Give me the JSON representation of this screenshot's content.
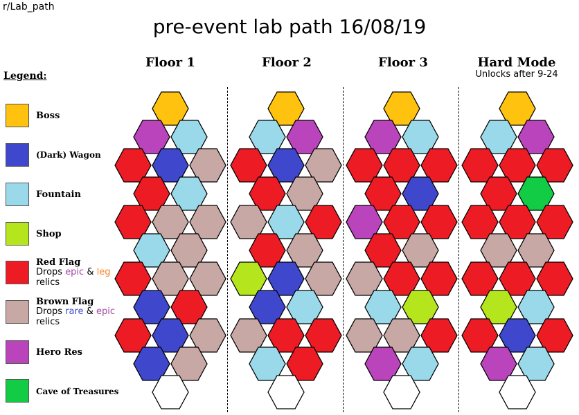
{
  "subreddit": "r/Lab_path",
  "title": "pre-event lab path  16/08/19",
  "legend": {
    "title": "Legend:",
    "items": [
      {
        "key": "boss",
        "label": "Boss",
        "color": "#FFC20E"
      },
      {
        "key": "wagon",
        "label": "(Dark) Wagon",
        "color": "#3F48CC"
      },
      {
        "key": "fountain",
        "label": "Fountain",
        "color": "#99D9EA"
      },
      {
        "key": "shop",
        "label": "Shop",
        "color": "#B5E61D"
      },
      {
        "key": "red",
        "label": "Red Flag",
        "color": "#ED1C24",
        "desc": {
          "line1_prefix": "Drops ",
          "word1": "epic",
          "mid": " & ",
          "word2": "leg",
          "line2": "relics",
          "word1_color": "#A349A4",
          "word2_color": "#FF7F27"
        }
      },
      {
        "key": "brown",
        "label": "Brown Flag",
        "color": "#C8A8A4",
        "desc": {
          "line1_prefix": "Drops ",
          "word1": "rare",
          "mid": " & ",
          "word2": "epic",
          "line2": "relics",
          "word1_color": "#3F48CC",
          "word2_color": "#A349A4"
        }
      },
      {
        "key": "hero",
        "label": "Hero Res",
        "color": "#BA44BC"
      },
      {
        "key": "cave",
        "label": "Cave of Treasures",
        "color": "#11CC44"
      }
    ]
  },
  "tile_colors": {
    "boss": "#FFC20E",
    "wagon": "#3F48CC",
    "fountain": "#99D9EA",
    "shop": "#B5E61D",
    "red": "#ED1C24",
    "brown": "#C8A8A4",
    "hero": "#BA44BC",
    "cave": "#11CC44",
    "empty": "#FFFFFF"
  },
  "floors": [
    {
      "name": "Floor 1",
      "subtitle": "",
      "rows": [
        [
          "boss"
        ],
        [
          "hero",
          "fountain"
        ],
        [
          "red",
          "wagon",
          "brown"
        ],
        [
          "red",
          "fountain"
        ],
        [
          "red",
          "brown",
          "brown"
        ],
        [
          "fountain",
          "brown"
        ],
        [
          "red",
          "brown",
          "brown"
        ],
        [
          "wagon",
          "red"
        ],
        [
          "red",
          "wagon",
          "brown"
        ],
        [
          "wagon",
          "brown"
        ],
        [
          "empty"
        ]
      ]
    },
    {
      "name": "Floor 2",
      "subtitle": "",
      "rows": [
        [
          "boss"
        ],
        [
          "fountain",
          "hero"
        ],
        [
          "red",
          "wagon",
          "brown"
        ],
        [
          "red",
          "brown"
        ],
        [
          "brown",
          "fountain",
          "red"
        ],
        [
          "red",
          "brown"
        ],
        [
          "shop",
          "wagon",
          "brown"
        ],
        [
          "wagon",
          "fountain"
        ],
        [
          "brown",
          "red",
          "red"
        ],
        [
          "fountain",
          "red"
        ],
        [
          "empty"
        ]
      ]
    },
    {
      "name": "Floor 3",
      "subtitle": "",
      "rows": [
        [
          "boss"
        ],
        [
          "hero",
          "fountain"
        ],
        [
          "red",
          "red",
          "red"
        ],
        [
          "red",
          "wagon"
        ],
        [
          "hero",
          "red",
          "red"
        ],
        [
          "red",
          "brown"
        ],
        [
          "brown",
          "red",
          "red"
        ],
        [
          "fountain",
          "shop"
        ],
        [
          "brown",
          "brown",
          "red"
        ],
        [
          "hero",
          "fountain"
        ],
        [
          "empty"
        ]
      ]
    },
    {
      "name": "Hard Mode",
      "subtitle": "Unlocks after 9-24",
      "rows": [
        [
          "boss"
        ],
        [
          "fountain",
          "hero"
        ],
        [
          "red",
          "red",
          "red"
        ],
        [
          "red",
          "cave"
        ],
        [
          "red",
          "red",
          "red"
        ],
        [
          "brown",
          "brown"
        ],
        [
          "red",
          "red",
          "red"
        ],
        [
          "shop",
          "fountain"
        ],
        [
          "red",
          "wagon",
          "red"
        ],
        [
          "hero",
          "fountain"
        ],
        [
          "empty"
        ]
      ]
    }
  ]
}
